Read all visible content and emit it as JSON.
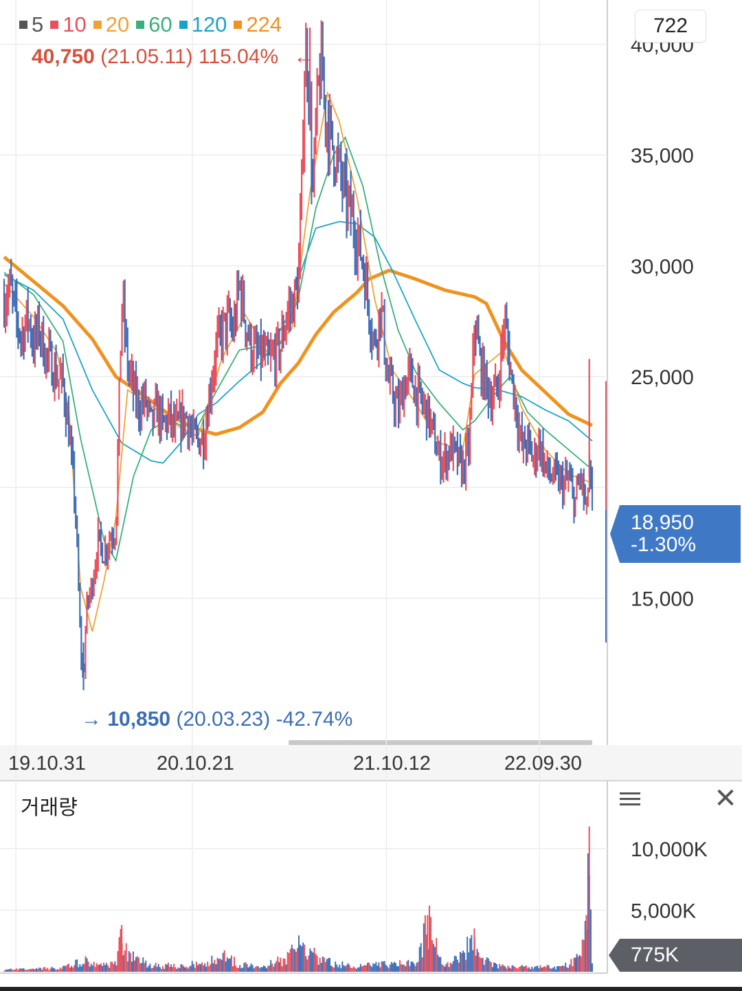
{
  "count_badge": "722",
  "legend": [
    {
      "label": "5",
      "color": "#555555"
    },
    {
      "label": "10",
      "color": "#e8505b"
    },
    {
      "label": "20",
      "color": "#f0a233"
    },
    {
      "label": "60",
      "color": "#39b07a"
    },
    {
      "label": "120",
      "color": "#1aa3c8"
    },
    {
      "label": "224",
      "color": "#f0921e"
    }
  ],
  "high_marker": {
    "price": "40,750",
    "date": "(21.05.11)",
    "pct": "115.04%",
    "arrow": "←"
  },
  "low_marker": {
    "arrow": "→",
    "price": "10,850",
    "date": "(20.03.23)",
    "pct": "-42.74%"
  },
  "current_price": {
    "price": "18,950",
    "change": "-1.30%"
  },
  "volume_panel": {
    "title": "거래량",
    "current": "775K"
  },
  "chart_data": {
    "type": "line",
    "price_axis": {
      "ylim": [
        8500,
        42000
      ],
      "ticks": [
        15000,
        25000,
        30000,
        35000,
        40000
      ],
      "tick_labels": [
        "15,000",
        "25,000",
        "30,000",
        "35,000",
        "40,000"
      ],
      "partial_tick": 20000
    },
    "x_axis": {
      "tick_labels": [
        "19.10.31",
        "20.10.21",
        "21.10.12",
        "22.09.30"
      ],
      "tick_positions": [
        0.02,
        0.32,
        0.65,
        0.91
      ]
    },
    "volume_axis": {
      "ylim": [
        0,
        12500
      ],
      "tick_labels": [
        "10,000K",
        "5,000K"
      ],
      "ticks": [
        10000,
        5000
      ]
    },
    "grid": true,
    "close_series": [
      [
        0.0,
        28500
      ],
      [
        0.01,
        29000
      ],
      [
        0.02,
        27600
      ],
      [
        0.03,
        26800
      ],
      [
        0.04,
        27800
      ],
      [
        0.05,
        26500
      ],
      [
        0.06,
        27200
      ],
      [
        0.07,
        26000
      ],
      [
        0.08,
        25600
      ],
      [
        0.09,
        25000
      ],
      [
        0.1,
        24700
      ],
      [
        0.11,
        22500
      ],
      [
        0.12,
        19600
      ],
      [
        0.125,
        16500
      ],
      [
        0.13,
        12700
      ],
      [
        0.135,
        11300
      ],
      [
        0.14,
        14500
      ],
      [
        0.15,
        15700
      ],
      [
        0.16,
        17600
      ],
      [
        0.17,
        17000
      ],
      [
        0.18,
        17800
      ],
      [
        0.19,
        18100
      ],
      [
        0.2,
        28500
      ],
      [
        0.205,
        27200
      ],
      [
        0.21,
        25500
      ],
      [
        0.22,
        24300
      ],
      [
        0.23,
        23600
      ],
      [
        0.24,
        24000
      ],
      [
        0.25,
        22800
      ],
      [
        0.26,
        23600
      ],
      [
        0.27,
        22700
      ],
      [
        0.28,
        23200
      ],
      [
        0.29,
        22500
      ],
      [
        0.3,
        23000
      ],
      [
        0.31,
        23200
      ],
      [
        0.32,
        22300
      ],
      [
        0.33,
        22100
      ],
      [
        0.34,
        22300
      ],
      [
        0.35,
        24400
      ],
      [
        0.36,
        26200
      ],
      [
        0.37,
        27000
      ],
      [
        0.38,
        27500
      ],
      [
        0.39,
        27000
      ],
      [
        0.4,
        29200
      ],
      [
        0.41,
        27500
      ],
      [
        0.42,
        26300
      ],
      [
        0.43,
        25900
      ],
      [
        0.44,
        26000
      ],
      [
        0.45,
        25600
      ],
      [
        0.46,
        26000
      ],
      [
        0.47,
        26300
      ],
      [
        0.48,
        27800
      ],
      [
        0.49,
        28200
      ],
      [
        0.5,
        29200
      ],
      [
        0.505,
        32500
      ],
      [
        0.51,
        38500
      ],
      [
        0.515,
        39800
      ],
      [
        0.52,
        36700
      ],
      [
        0.525,
        33200
      ],
      [
        0.53,
        36200
      ],
      [
        0.535,
        38200
      ],
      [
        0.54,
        39100
      ],
      [
        0.545,
        37200
      ],
      [
        0.55,
        36300
      ],
      [
        0.56,
        35300
      ],
      [
        0.57,
        34300
      ],
      [
        0.58,
        33100
      ],
      [
        0.59,
        32300
      ],
      [
        0.6,
        31300
      ],
      [
        0.61,
        30200
      ],
      [
        0.62,
        28100
      ],
      [
        0.63,
        26400
      ],
      [
        0.635,
        27300
      ],
      [
        0.64,
        28200
      ],
      [
        0.645,
        27200
      ],
      [
        0.65,
        25100
      ],
      [
        0.66,
        24300
      ],
      [
        0.67,
        23400
      ],
      [
        0.68,
        24600
      ],
      [
        0.69,
        25100
      ],
      [
        0.7,
        24300
      ],
      [
        0.71,
        23800
      ],
      [
        0.72,
        23400
      ],
      [
        0.73,
        22300
      ],
      [
        0.74,
        21300
      ],
      [
        0.75,
        21300
      ],
      [
        0.76,
        21800
      ],
      [
        0.77,
        21300
      ],
      [
        0.78,
        20800
      ],
      [
        0.79,
        21800
      ],
      [
        0.795,
        24000
      ],
      [
        0.8,
        27800
      ],
      [
        0.805,
        26500
      ],
      [
        0.81,
        25500
      ],
      [
        0.82,
        24600
      ],
      [
        0.83,
        24000
      ],
      [
        0.84,
        24600
      ],
      [
        0.85,
        27400
      ],
      [
        0.855,
        26800
      ],
      [
        0.86,
        25500
      ],
      [
        0.87,
        23700
      ],
      [
        0.88,
        21800
      ],
      [
        0.89,
        22000
      ],
      [
        0.9,
        21200
      ],
      [
        0.91,
        22100
      ],
      [
        0.92,
        20900
      ],
      [
        0.93,
        20500
      ],
      [
        0.94,
        20400
      ],
      [
        0.95,
        20100
      ],
      [
        0.96,
        20400
      ],
      [
        0.97,
        19300
      ],
      [
        0.975,
        19800
      ],
      [
        0.98,
        20600
      ],
      [
        0.985,
        19800
      ],
      [
        0.99,
        18700
      ],
      [
        0.995,
        21000
      ],
      [
        1.0,
        18950
      ]
    ],
    "ma_224_series": [
      [
        0.0,
        30400
      ],
      [
        0.05,
        29300
      ],
      [
        0.1,
        28200
      ],
      [
        0.15,
        26700
      ],
      [
        0.19,
        25000
      ],
      [
        0.24,
        24100
      ],
      [
        0.28,
        23300
      ],
      [
        0.32,
        22700
      ],
      [
        0.36,
        22400
      ],
      [
        0.4,
        22700
      ],
      [
        0.44,
        23400
      ],
      [
        0.47,
        24700
      ],
      [
        0.5,
        25600
      ],
      [
        0.53,
        26900
      ],
      [
        0.56,
        27900
      ],
      [
        0.6,
        28800
      ],
      [
        0.62,
        29400
      ],
      [
        0.655,
        29800
      ],
      [
        0.7,
        29400
      ],
      [
        0.75,
        28900
      ],
      [
        0.8,
        28600
      ],
      [
        0.82,
        28300
      ],
      [
        0.85,
        26600
      ],
      [
        0.88,
        25300
      ],
      [
        0.92,
        24300
      ],
      [
        0.96,
        23300
      ],
      [
        1.0,
        22800
      ]
    ],
    "ma_120_series": [
      [
        0.0,
        29600
      ],
      [
        0.05,
        28900
      ],
      [
        0.1,
        27600
      ],
      [
        0.15,
        24400
      ],
      [
        0.2,
        22000
      ],
      [
        0.25,
        21200
      ],
      [
        0.27,
        21100
      ],
      [
        0.3,
        22000
      ],
      [
        0.33,
        23300
      ],
      [
        0.36,
        23800
      ],
      [
        0.4,
        24800
      ],
      [
        0.44,
        25700
      ],
      [
        0.48,
        27600
      ],
      [
        0.5,
        29400
      ],
      [
        0.53,
        31700
      ],
      [
        0.57,
        32000
      ],
      [
        0.6,
        31900
      ],
      [
        0.63,
        31300
      ],
      [
        0.66,
        29800
      ],
      [
        0.7,
        27500
      ],
      [
        0.74,
        25300
      ],
      [
        0.78,
        24700
      ],
      [
        0.8,
        24500
      ],
      [
        0.84,
        24400
      ],
      [
        0.88,
        24100
      ],
      [
        0.92,
        23500
      ],
      [
        0.96,
        23000
      ],
      [
        1.0,
        22100
      ]
    ],
    "ma_60_series": [
      [
        0.0,
        29700
      ],
      [
        0.05,
        28700
      ],
      [
        0.1,
        26600
      ],
      [
        0.13,
        22200
      ],
      [
        0.17,
        17600
      ],
      [
        0.19,
        16700
      ],
      [
        0.22,
        20500
      ],
      [
        0.25,
        22600
      ],
      [
        0.28,
        23100
      ],
      [
        0.3,
        22800
      ],
      [
        0.33,
        22800
      ],
      [
        0.36,
        24300
      ],
      [
        0.4,
        26200
      ],
      [
        0.44,
        26400
      ],
      [
        0.47,
        26500
      ],
      [
        0.5,
        28500
      ],
      [
        0.53,
        32600
      ],
      [
        0.56,
        35000
      ],
      [
        0.58,
        35800
      ],
      [
        0.61,
        33600
      ],
      [
        0.64,
        30000
      ],
      [
        0.67,
        27100
      ],
      [
        0.7,
        25200
      ],
      [
        0.74,
        23800
      ],
      [
        0.78,
        22600
      ],
      [
        0.8,
        23000
      ],
      [
        0.84,
        24400
      ],
      [
        0.86,
        25000
      ],
      [
        0.89,
        23400
      ],
      [
        0.92,
        22600
      ],
      [
        0.96,
        21700
      ],
      [
        1.0,
        20800
      ]
    ],
    "ma_20_series": [
      [
        0.0,
        29200
      ],
      [
        0.05,
        27700
      ],
      [
        0.09,
        26100
      ],
      [
        0.11,
        23500
      ],
      [
        0.13,
        15500
      ],
      [
        0.15,
        13500
      ],
      [
        0.17,
        15800
      ],
      [
        0.19,
        18600
      ],
      [
        0.21,
        24400
      ],
      [
        0.24,
        23900
      ],
      [
        0.3,
        22700
      ],
      [
        0.33,
        22300
      ],
      [
        0.37,
        25800
      ],
      [
        0.41,
        27800
      ],
      [
        0.45,
        26000
      ],
      [
        0.49,
        27200
      ],
      [
        0.52,
        33300
      ],
      [
        0.55,
        37800
      ],
      [
        0.57,
        36500
      ],
      [
        0.6,
        33100
      ],
      [
        0.63,
        28500
      ],
      [
        0.66,
        25300
      ],
      [
        0.7,
        23800
      ],
      [
        0.74,
        22000
      ],
      [
        0.78,
        21700
      ],
      [
        0.8,
        25100
      ],
      [
        0.85,
        26200
      ],
      [
        0.88,
        23600
      ],
      [
        0.92,
        21700
      ],
      [
        0.96,
        20600
      ],
      [
        1.0,
        20200
      ]
    ],
    "volume_series": [
      [
        0.0,
        180
      ],
      [
        0.05,
        250
      ],
      [
        0.1,
        400
      ],
      [
        0.13,
        900
      ],
      [
        0.14,
        1100
      ],
      [
        0.16,
        700
      ],
      [
        0.19,
        800
      ],
      [
        0.2,
        3800
      ],
      [
        0.205,
        2200
      ],
      [
        0.21,
        1500
      ],
      [
        0.25,
        600
      ],
      [
        0.3,
        550
      ],
      [
        0.35,
        900
      ],
      [
        0.37,
        1800
      ],
      [
        0.4,
        600
      ],
      [
        0.45,
        700
      ],
      [
        0.48,
        1200
      ],
      [
        0.51,
        2800
      ],
      [
        0.52,
        1800
      ],
      [
        0.55,
        900
      ],
      [
        0.6,
        500
      ],
      [
        0.65,
        700
      ],
      [
        0.7,
        800
      ],
      [
        0.72,
        4600
      ],
      [
        0.75,
        500
      ],
      [
        0.8,
        2800
      ],
      [
        0.81,
        1200
      ],
      [
        0.85,
        500
      ],
      [
        0.9,
        400
      ],
      [
        0.95,
        500
      ],
      [
        0.98,
        1300
      ],
      [
        0.99,
        4600
      ],
      [
        0.995,
        11800
      ],
      [
        1.0,
        775
      ]
    ]
  }
}
